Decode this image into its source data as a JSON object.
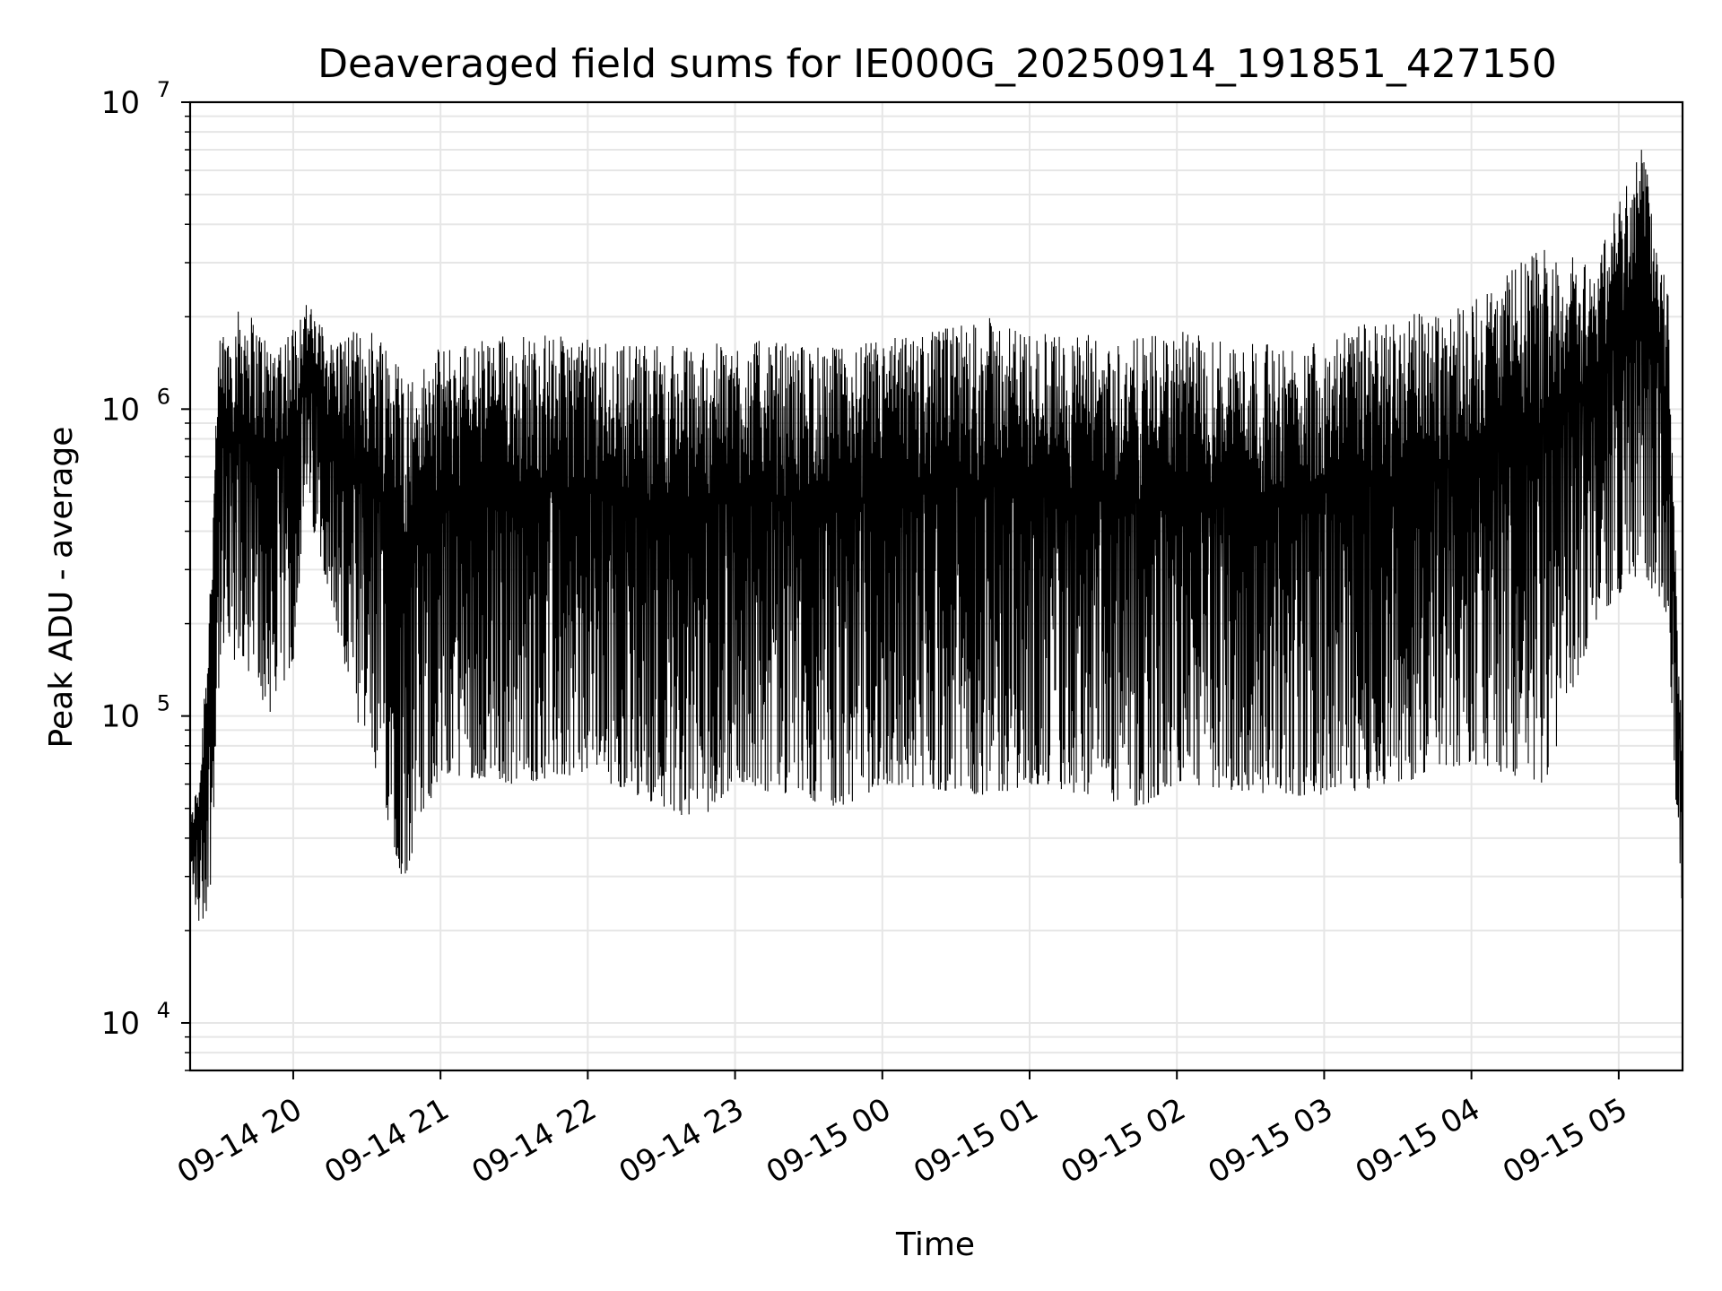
{
  "chart_data": {
    "type": "line",
    "title": "Deaveraged field sums for IE000G_20250914_191851_427150",
    "xlabel": "Time",
    "ylabel": "Peak ADU - average",
    "yscale": "log",
    "ylim": [
      7000,
      10000000
    ],
    "xlim": [
      "2025-09-14 19:18",
      "2025-09-15 05:26"
    ],
    "grid": true,
    "line_color": "#000000",
    "grid_color": "#e6e6e6",
    "x_ticks": [
      {
        "label": "09-14 20",
        "value": "2025-09-14 20:00"
      },
      {
        "label": "09-14 21",
        "value": "2025-09-14 21:00"
      },
      {
        "label": "09-14 22",
        "value": "2025-09-14 22:00"
      },
      {
        "label": "09-14 23",
        "value": "2025-09-14 23:00"
      },
      {
        "label": "09-15 00",
        "value": "2025-09-15 00:00"
      },
      {
        "label": "09-15 01",
        "value": "2025-09-15 01:00"
      },
      {
        "label": "09-15 02",
        "value": "2025-09-15 02:00"
      },
      {
        "label": "09-15 03",
        "value": "2025-09-15 03:00"
      },
      {
        "label": "09-15 04",
        "value": "2025-09-15 04:00"
      },
      {
        "label": "09-15 05",
        "value": "2025-09-15 05:00"
      }
    ],
    "y_ticks": [
      {
        "base": "10",
        "exp": "4",
        "value": 10000
      },
      {
        "base": "10",
        "exp": "5",
        "value": 100000
      },
      {
        "base": "10",
        "exp": "6",
        "value": 1000000
      },
      {
        "base": "10",
        "exp": "7",
        "value": 10000000
      }
    ],
    "envelope": [
      {
        "t": "2025-09-14 19:18",
        "low": 30000,
        "high": 45000
      },
      {
        "t": "2025-09-14 19:22",
        "low": 20000,
        "high": 70000
      },
      {
        "t": "2025-09-14 19:26",
        "low": 25000,
        "high": 280000
      },
      {
        "t": "2025-09-14 19:30",
        "low": 140000,
        "high": 1800000
      },
      {
        "t": "2025-09-14 19:40",
        "low": 150000,
        "high": 2200000
      },
      {
        "t": "2025-09-14 19:50",
        "low": 100000,
        "high": 1700000
      },
      {
        "t": "2025-09-14 20:00",
        "low": 150000,
        "high": 1900000
      },
      {
        "t": "2025-09-14 20:05",
        "low": 500000,
        "high": 2300000
      },
      {
        "t": "2025-09-14 20:15",
        "low": 250000,
        "high": 1700000
      },
      {
        "t": "2025-09-14 20:25",
        "low": 90000,
        "high": 1800000
      },
      {
        "t": "2025-09-14 20:35",
        "low": 60000,
        "high": 1900000
      },
      {
        "t": "2025-09-14 20:45",
        "low": 28000,
        "high": 1400000
      },
      {
        "t": "2025-09-14 20:50",
        "low": 40000,
        "high": 1300000
      },
      {
        "t": "2025-09-14 21:00",
        "low": 65000,
        "high": 1600000
      },
      {
        "t": "2025-09-14 21:30",
        "low": 60000,
        "high": 1800000
      },
      {
        "t": "2025-09-14 22:00",
        "low": 65000,
        "high": 1700000
      },
      {
        "t": "2025-09-14 22:45",
        "low": 45000,
        "high": 1600000
      },
      {
        "t": "2025-09-14 23:00",
        "low": 60000,
        "high": 1700000
      },
      {
        "t": "2025-09-14 23:45",
        "low": 50000,
        "high": 1600000
      },
      {
        "t": "2025-09-15 00:00",
        "low": 60000,
        "high": 1700000
      },
      {
        "t": "2025-09-15 00:45",
        "low": 55000,
        "high": 2000000
      },
      {
        "t": "2025-09-15 01:00",
        "low": 60000,
        "high": 1800000
      },
      {
        "t": "2025-09-15 01:45",
        "low": 50000,
        "high": 1700000
      },
      {
        "t": "2025-09-15 02:00",
        "low": 60000,
        "high": 1800000
      },
      {
        "t": "2025-09-15 02:45",
        "low": 55000,
        "high": 1600000
      },
      {
        "t": "2025-09-15 03:00",
        "low": 55000,
        "high": 1800000
      },
      {
        "t": "2025-09-15 03:30",
        "low": 60000,
        "high": 2000000
      },
      {
        "t": "2025-09-15 04:00",
        "low": 70000,
        "high": 2300000
      },
      {
        "t": "2025-09-15 04:30",
        "low": 60000,
        "high": 3500000
      },
      {
        "t": "2025-09-15 04:50",
        "low": 200000,
        "high": 3000000
      },
      {
        "t": "2025-09-15 05:00",
        "low": 250000,
        "high": 5000000
      },
      {
        "t": "2025-09-15 05:10",
        "low": 300000,
        "high": 7500000
      },
      {
        "t": "2025-09-15 05:20",
        "low": 200000,
        "high": 2500000
      },
      {
        "t": "2025-09-15 05:24",
        "low": 40000,
        "high": 200000
      },
      {
        "t": "2025-09-15 05:26",
        "low": 23000,
        "high": 75000
      }
    ]
  }
}
